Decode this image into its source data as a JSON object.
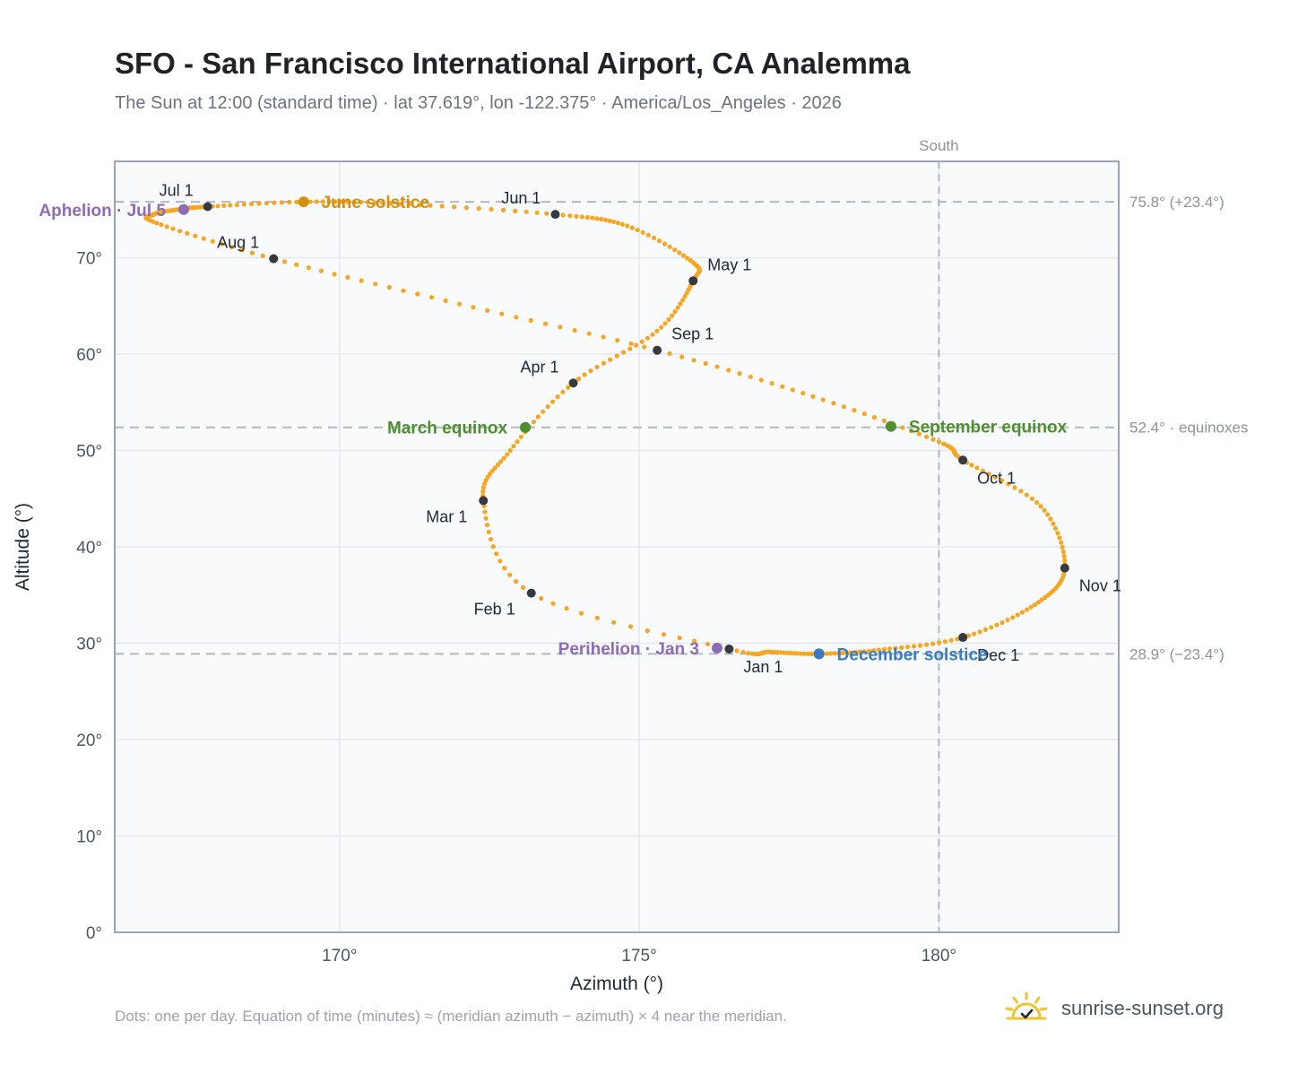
{
  "header": {
    "title": "SFO - San Francisco International Airport, CA Analemma",
    "subtitle": "The Sun at 12:00 (standard time) · lat 37.619°, lon -122.375° · America/Los_Angeles · 2026"
  },
  "footer": {
    "note": "Dots: one per day. Equation of time (minutes) ≈ (meridian azimuth − azimuth) × 4 near the meridian.",
    "brand": "sunrise-sunset.org",
    "brand_icon": "sun-check-icon"
  },
  "colors": {
    "curve": "#f5a623",
    "month_marker": "#343a40",
    "solstice_june": "#d4900c",
    "solstice_december": "#3a7bbf",
    "equinox": "#4e8f2e",
    "apsis": "#8e6bb5",
    "reference_line": "#b0b8c0",
    "plot_bg": "#f8fafc",
    "frame": "#9aa4b2"
  },
  "chart_data": {
    "type": "scatter",
    "xlabel": "Azimuth (°)",
    "ylabel": "Altitude (°)",
    "xlim": [
      166.25,
      183.0
    ],
    "ylim": [
      0,
      80
    ],
    "x_ticks": [
      170,
      175,
      180
    ],
    "x_tick_labels": [
      "170°",
      "175°",
      "180°"
    ],
    "y_ticks": [
      0,
      10,
      20,
      30,
      40,
      50,
      60,
      70
    ],
    "y_tick_labels": [
      "0°",
      "10°",
      "20°",
      "30°",
      "40°",
      "50°",
      "60°",
      "70°"
    ],
    "grid": true,
    "meridian": {
      "azimuth": 180,
      "label": "South"
    },
    "reference_lines": [
      {
        "altitude": 75.8,
        "label": "75.8° (+23.4°)"
      },
      {
        "altitude": 52.4,
        "label": "52.4° · equinoxes"
      },
      {
        "altitude": 28.9,
        "label": "28.9° (−23.4°)"
      }
    ],
    "series": [
      {
        "points": [
          [
            176.5,
            29.4
          ],
          [
            173.2,
            35.2
          ],
          [
            172.4,
            44.8
          ],
          [
            172.85,
            50.0
          ],
          [
            173.9,
            57.0
          ],
          [
            175.3,
            62.4
          ],
          [
            175.9,
            67.6
          ],
          [
            175.9,
            69.5
          ],
          [
            174.8,
            73.3
          ],
          [
            173.6,
            74.5
          ],
          [
            171.0,
            75.6
          ],
          [
            169.4,
            75.8
          ],
          [
            167.8,
            75.3
          ],
          [
            167.3,
            75.0
          ],
          [
            166.9,
            74.5
          ],
          [
            166.95,
            73.6
          ],
          [
            168.9,
            69.9
          ],
          [
            172.0,
            65.2
          ],
          [
            175.3,
            60.4
          ],
          [
            177.9,
            55.6
          ],
          [
            180.0,
            50.9
          ],
          [
            180.4,
            49.0
          ],
          [
            181.7,
            44.2
          ],
          [
            182.1,
            37.8
          ],
          [
            181.6,
            34.0
          ],
          [
            180.4,
            30.6
          ],
          [
            179.0,
            29.3
          ],
          [
            178.0,
            28.9
          ],
          [
            177.2,
            29.1
          ],
          [
            176.5,
            29.4
          ]
        ]
      }
    ],
    "month_markers": [
      {
        "label": "Jan 1",
        "az": 176.5,
        "alt": 29.4,
        "pos": "below-right"
      },
      {
        "label": "Feb 1",
        "az": 173.2,
        "alt": 35.2,
        "pos": "below-left"
      },
      {
        "label": "Mar 1",
        "az": 172.4,
        "alt": 44.8,
        "pos": "below-left"
      },
      {
        "label": "Apr 1",
        "az": 173.9,
        "alt": 57.0,
        "pos": "above-left"
      },
      {
        "label": "May 1",
        "az": 175.9,
        "alt": 67.6,
        "pos": "above-right"
      },
      {
        "label": "Jun 1",
        "az": 173.6,
        "alt": 74.5,
        "pos": "above-left"
      },
      {
        "label": "Jul 1",
        "az": 167.8,
        "alt": 75.3,
        "pos": "above-left"
      },
      {
        "label": "Aug 1",
        "az": 168.9,
        "alt": 69.9,
        "pos": "above-left"
      },
      {
        "label": "Sep 1",
        "az": 175.3,
        "alt": 60.4,
        "pos": "above-right"
      },
      {
        "label": "Oct 1",
        "az": 180.4,
        "alt": 49.0,
        "pos": "below-right"
      },
      {
        "label": "Nov 1",
        "az": 182.1,
        "alt": 37.8,
        "pos": "below-right"
      },
      {
        "label": "Dec 1",
        "az": 180.4,
        "alt": 30.6,
        "pos": "below-right"
      }
    ],
    "events": [
      {
        "label": "June solstice",
        "az": 169.4,
        "alt": 75.8,
        "color_key": "solstice_june",
        "side": "right"
      },
      {
        "label": "December solstice",
        "az": 178.0,
        "alt": 28.9,
        "color_key": "solstice_december",
        "side": "right"
      },
      {
        "label": "March equinox",
        "az": 173.1,
        "alt": 52.4,
        "color_key": "equinox",
        "side": "left"
      },
      {
        "label": "September equinox",
        "az": 179.2,
        "alt": 52.5,
        "color_key": "equinox",
        "side": "right"
      },
      {
        "label": "Aphelion · Jul 5",
        "az": 167.4,
        "alt": 75.0,
        "color_key": "apsis",
        "side": "left"
      },
      {
        "label": "Perihelion · Jan 3",
        "az": 176.3,
        "alt": 29.5,
        "color_key": "apsis",
        "side": "left"
      }
    ]
  }
}
